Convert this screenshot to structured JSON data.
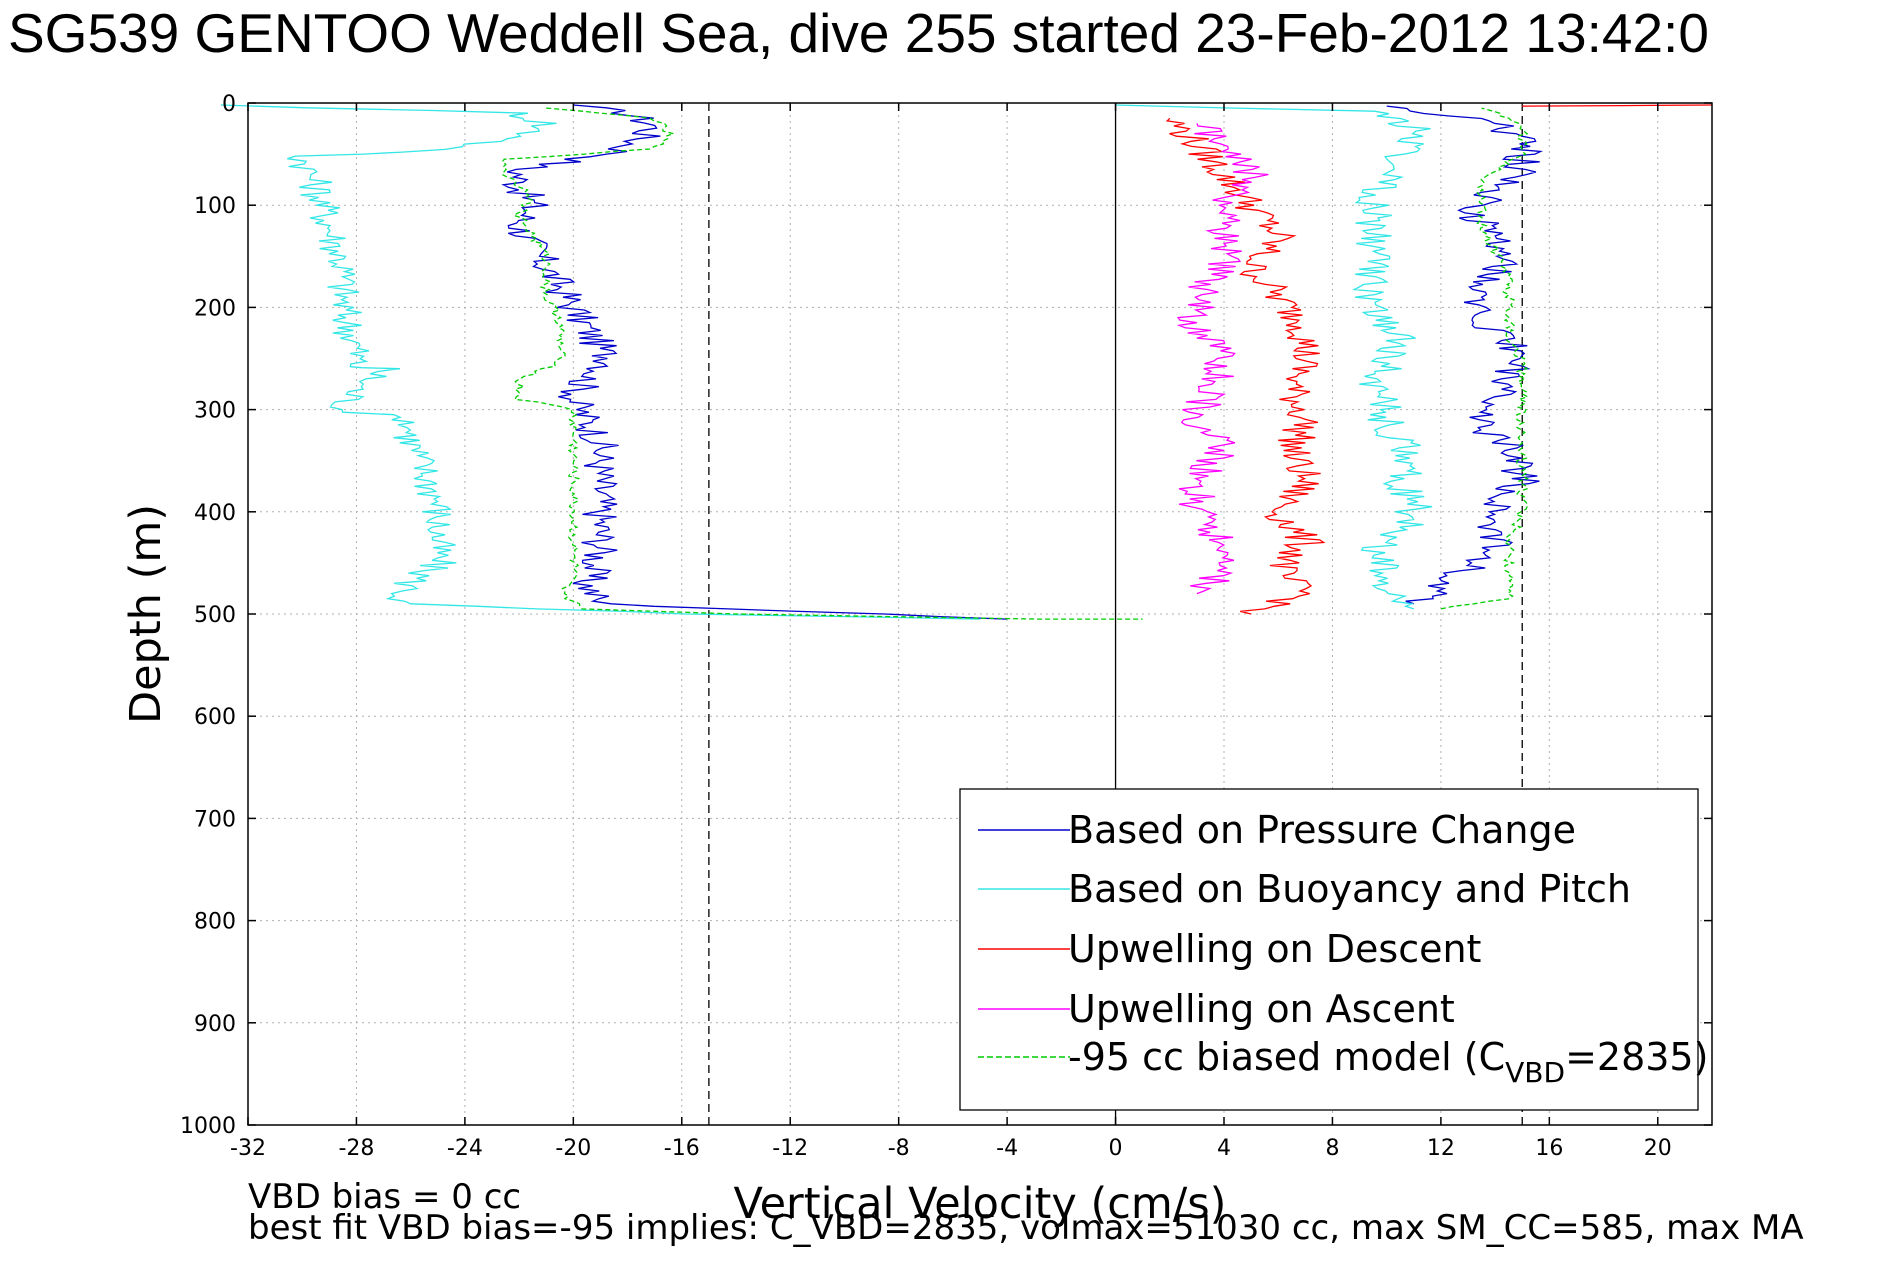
{
  "title": "SG539 GENTOO Weddell Sea, dive 255 started 23-Feb-2012 13:42:0",
  "chart_data": {
    "type": "line",
    "xlabel": "Vertical Velocity (cm/s)",
    "ylabel": "Depth (m)",
    "xlim": [
      -32,
      22
    ],
    "ylim": [
      0,
      1000
    ],
    "y_reversed": true,
    "grid": true,
    "xticks": [
      -32,
      -28,
      -24,
      -20,
      -16,
      -12,
      -8,
      -4,
      0,
      4,
      8,
      12,
      16,
      20
    ],
    "yticks": [
      0,
      100,
      200,
      300,
      400,
      500,
      600,
      700,
      800,
      900,
      1000
    ],
    "reference_lines": [
      {
        "x": -15,
        "style": "dashed"
      },
      {
        "x": 0,
        "style": "solid"
      },
      {
        "x": 15,
        "style": "dashed"
      }
    ],
    "legend": {
      "location": "bottom-right",
      "entries": [
        {
          "label": "Based on Pressure Change",
          "color": "#0000cc"
        },
        {
          "label": "Based on Buoyancy and Pitch",
          "color": "#33e6e6"
        },
        {
          "label": "Upwelling on Descent",
          "color": "#ff0000"
        },
        {
          "label": "Upwelling on Ascent",
          "color": "#ff00ff"
        },
        {
          "label_main": "-95 cc biased model (C",
          "label_sub": "VBD",
          "label_tail": "=2835)",
          "color": "#00cc00",
          "dashed": true
        }
      ]
    },
    "series": [
      {
        "color": "#0000cc",
        "descent": [
          [
            -20,
            2
          ],
          [
            -18,
            10
          ],
          [
            -17,
            22
          ],
          [
            -17.5,
            35
          ],
          [
            -18.5,
            50
          ],
          [
            -22,
            65
          ],
          [
            -22,
            80
          ],
          [
            -21.5,
            100
          ],
          [
            -22,
            120
          ],
          [
            -21.5,
            140
          ],
          [
            -21,
            160
          ],
          [
            -20.5,
            180
          ],
          [
            -20,
            200
          ],
          [
            -19.5,
            220
          ],
          [
            -19,
            240
          ],
          [
            -18.5,
            255
          ],
          [
            -19.5,
            270
          ],
          [
            -20,
            290
          ],
          [
            -19.5,
            310
          ],
          [
            -19,
            330
          ],
          [
            -19,
            350
          ],
          [
            -19,
            380
          ],
          [
            -19,
            410
          ],
          [
            -19,
            440
          ],
          [
            -19.5,
            470
          ],
          [
            -19,
            490
          ],
          [
            -4,
            505
          ]
        ],
        "ascent": [
          [
            11,
            490
          ],
          [
            12,
            475
          ],
          [
            13,
            455
          ],
          [
            14,
            435
          ],
          [
            14,
            415
          ],
          [
            14,
            395
          ],
          [
            15,
            370
          ],
          [
            14.5,
            340
          ],
          [
            13.5,
            315
          ],
          [
            14,
            290
          ],
          [
            14.5,
            265
          ],
          [
            15,
            245
          ],
          [
            14,
            225
          ],
          [
            13.5,
            205
          ],
          [
            13,
            185
          ],
          [
            14,
            165
          ],
          [
            14.5,
            145
          ],
          [
            14,
            125
          ],
          [
            13,
            105
          ],
          [
            14.5,
            80
          ],
          [
            15,
            60
          ],
          [
            15,
            40
          ],
          [
            14,
            20
          ],
          [
            10,
            3
          ]
        ]
      },
      {
        "color": "#33e6e6",
        "descent": [
          [
            -33,
            2
          ],
          [
            -22,
            10
          ],
          [
            -21,
            20
          ],
          [
            -22,
            35
          ],
          [
            -26,
            48
          ],
          [
            -30,
            52
          ],
          [
            -29.5,
            80
          ],
          [
            -29,
            120
          ],
          [
            -28.5,
            160
          ],
          [
            -28.5,
            200
          ],
          [
            -28,
            240
          ],
          [
            -28,
            258
          ],
          [
            -27,
            260
          ],
          [
            -28,
            280
          ],
          [
            -28.5,
            300
          ],
          [
            -26,
            310
          ],
          [
            -26,
            330
          ],
          [
            -25.5,
            360
          ],
          [
            -25,
            390
          ],
          [
            -25,
            420
          ],
          [
            -25,
            450
          ],
          [
            -26,
            470
          ],
          [
            -26.5,
            490
          ],
          [
            -16,
            500
          ],
          [
            -5,
            505
          ]
        ],
        "ascent": [
          [
            11,
            495
          ],
          [
            10,
            480
          ],
          [
            10,
            460
          ],
          [
            9.5,
            440
          ],
          [
            10,
            425
          ],
          [
            11,
            410
          ],
          [
            11,
            390
          ],
          [
            10.5,
            370
          ],
          [
            11,
            345
          ],
          [
            10,
            320
          ],
          [
            10,
            300
          ],
          [
            9.5,
            275
          ],
          [
            10,
            255
          ],
          [
            10.5,
            235
          ],
          [
            10,
            215
          ],
          [
            9.5,
            195
          ],
          [
            9.5,
            175
          ],
          [
            9.5,
            150
          ],
          [
            9.5,
            125
          ],
          [
            9.5,
            100
          ],
          [
            10,
            75
          ],
          [
            10.5,
            50
          ],
          [
            11,
            25
          ],
          [
            10,
            8
          ],
          [
            0,
            2
          ]
        ]
      },
      {
        "color": "#ff0000",
        "descent": [
          [
            2,
            15
          ],
          [
            3,
            40
          ],
          [
            4,
            70
          ],
          [
            5,
            100
          ],
          [
            6,
            130
          ],
          [
            5,
            160
          ],
          [
            6,
            190
          ],
          [
            7,
            220
          ],
          [
            7,
            250
          ],
          [
            6.5,
            280
          ],
          [
            7,
            310
          ],
          [
            6.5,
            340
          ],
          [
            7,
            370
          ],
          [
            6,
            400
          ],
          [
            7,
            430
          ],
          [
            6,
            460
          ],
          [
            7,
            480
          ],
          [
            5,
            500
          ]
        ],
        "ascent": [
          [
            22,
            2
          ],
          [
            15,
            3
          ]
        ]
      },
      {
        "color": "#ff00ff",
        "descent": [
          [
            3,
            480
          ],
          [
            4,
            460
          ],
          [
            4,
            430
          ],
          [
            3,
            400
          ],
          [
            3,
            370
          ],
          [
            4,
            340
          ],
          [
            3,
            310
          ],
          [
            3.5,
            280
          ],
          [
            4,
            250
          ],
          [
            3,
            220
          ],
          [
            3,
            190
          ],
          [
            4,
            160
          ],
          [
            4,
            130
          ],
          [
            4,
            100
          ],
          [
            5,
            70
          ],
          [
            4.5,
            45
          ],
          [
            3,
            20
          ]
        ],
        "ascent": []
      },
      {
        "color": "#00cc00",
        "dashed": true,
        "descent": [
          [
            -21,
            5
          ],
          [
            -17,
            15
          ],
          [
            -16.5,
            30
          ],
          [
            -17,
            45
          ],
          [
            -22.5,
            55
          ],
          [
            -22.5,
            70
          ],
          [
            -21.5,
            90
          ],
          [
            -22,
            110
          ],
          [
            -21.5,
            130
          ],
          [
            -21,
            150
          ],
          [
            -21,
            170
          ],
          [
            -21,
            190
          ],
          [
            -20.5,
            210
          ],
          [
            -20.5,
            230
          ],
          [
            -20.5,
            255
          ],
          [
            -22,
            270
          ],
          [
            -22,
            290
          ],
          [
            -20,
            300
          ],
          [
            -20,
            310
          ],
          [
            -20,
            330
          ],
          [
            -20,
            350
          ],
          [
            -20,
            370
          ],
          [
            -20,
            400
          ],
          [
            -20,
            430
          ],
          [
            -20,
            460
          ],
          [
            -20.5,
            480
          ],
          [
            -19.5,
            495
          ],
          [
            -14,
            500
          ],
          [
            -3,
            505
          ],
          [
            1,
            505
          ]
        ],
        "ascent": [
          [
            12,
            495
          ],
          [
            14.5,
            485
          ],
          [
            14.5,
            460
          ],
          [
            14.5,
            430
          ],
          [
            15,
            400
          ],
          [
            15,
            370
          ],
          [
            15,
            340
          ],
          [
            15,
            310
          ],
          [
            15,
            285
          ],
          [
            15,
            255
          ],
          [
            14.5,
            225
          ],
          [
            14.5,
            200
          ],
          [
            14.5,
            170
          ],
          [
            14,
            145
          ],
          [
            13.5,
            120
          ],
          [
            13.5,
            95
          ],
          [
            13.5,
            75
          ],
          [
            15,
            50
          ],
          [
            15,
            20
          ],
          [
            13.5,
            5
          ]
        ]
      }
    ]
  },
  "footer": {
    "line1": "VBD bias = 0 cc",
    "line2": "best fit VBD bias=-95 implies: C_VBD=2835, volmax=51030 cc, max SM_CC=585, max MA"
  }
}
